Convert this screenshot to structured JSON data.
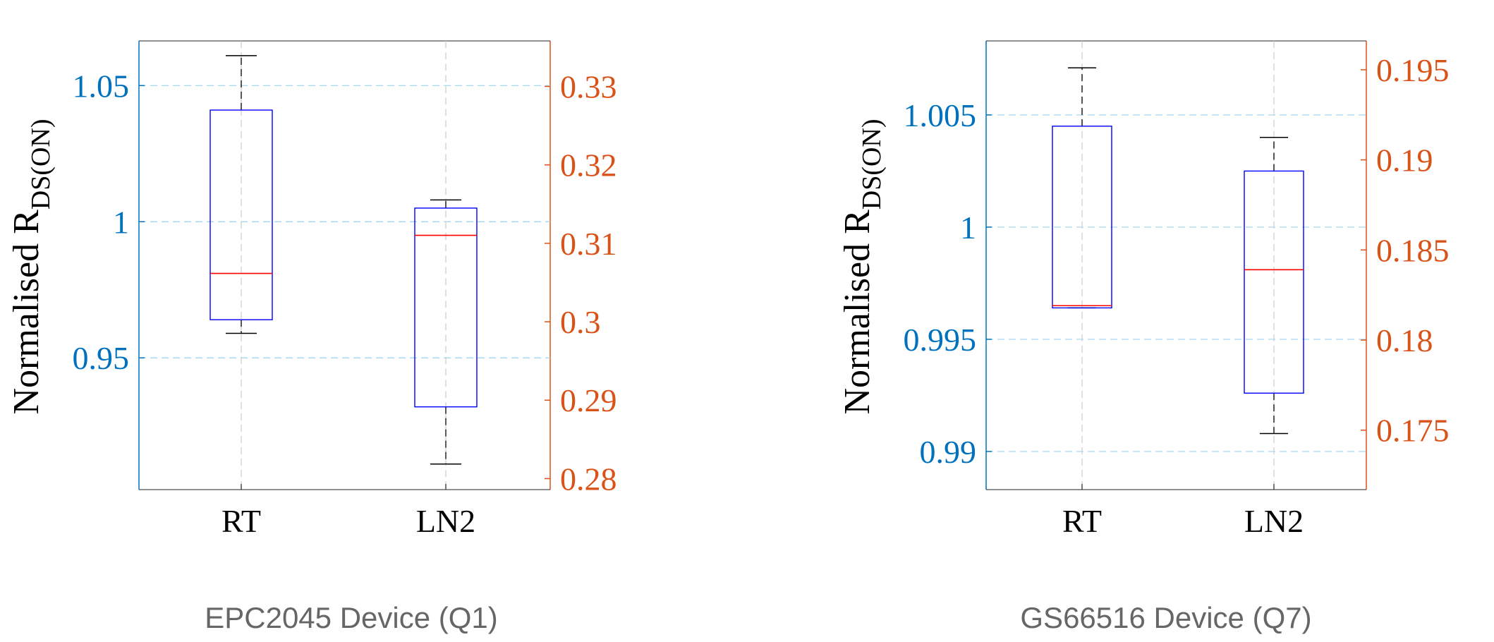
{
  "chart_data": [
    {
      "type": "boxplot",
      "caption": "EPC2045 Device (Q1)",
      "ylabel_main": "Normalised R",
      "ylabel_sub": "DS(ON)",
      "categories": [
        "RT",
        "LN2"
      ],
      "left_axis": {
        "color": "#0072BD",
        "ylim": [
          0.9016,
          1.0664
        ],
        "ticks": [
          0.95,
          1,
          1.05
        ],
        "tick_labels": [
          "0.95",
          "1",
          "1.05"
        ]
      },
      "right_axis": {
        "color": "#D95319",
        "ylim": [
          0.2786,
          0.3358
        ],
        "ticks": [
          0.28,
          0.29,
          0.3,
          0.31,
          0.32,
          0.33
        ],
        "tick_labels": [
          "0.28",
          "0.29",
          "0.3",
          "0.31",
          "0.32",
          "0.33"
        ]
      },
      "boxes": [
        {
          "label": "RT",
          "whisker_low": 0.959,
          "q1": 0.964,
          "median": 0.981,
          "q3": 1.041,
          "whisker_high": 1.061
        },
        {
          "label": "LN2",
          "whisker_low": 0.911,
          "q1": 0.932,
          "median": 0.995,
          "q3": 1.005,
          "whisker_high": 1.008
        }
      ]
    },
    {
      "type": "boxplot",
      "caption": "GS66516 Device (Q7)",
      "ylabel_main": "Normalised R",
      "ylabel_sub": "DS(ON)",
      "categories": [
        "RT",
        "LN2"
      ],
      "left_axis": {
        "color": "#0072BD",
        "ylim": [
          0.9883,
          1.0083
        ],
        "ticks": [
          0.99,
          0.995,
          1,
          1.005
        ],
        "tick_labels": [
          "0.99",
          "0.995",
          "1",
          "1.005"
        ]
      },
      "right_axis": {
        "color": "#D95319",
        "ylim": [
          0.1717,
          0.1966
        ],
        "ticks": [
          0.175,
          0.18,
          0.185,
          0.19,
          0.195
        ],
        "tick_labels": [
          "0.175",
          "0.18",
          "0.185",
          "0.19",
          "0.195"
        ]
      },
      "boxes": [
        {
          "label": "RT",
          "whisker_low": 0.9964,
          "q1": 0.9964,
          "median": 0.9965,
          "q3": 1.0045,
          "whisker_high": 1.0071
        },
        {
          "label": "LN2",
          "whisker_low": 0.9908,
          "q1": 0.9926,
          "median": 0.9981,
          "q3": 1.0025,
          "whisker_high": 1.004
        }
      ]
    }
  ]
}
